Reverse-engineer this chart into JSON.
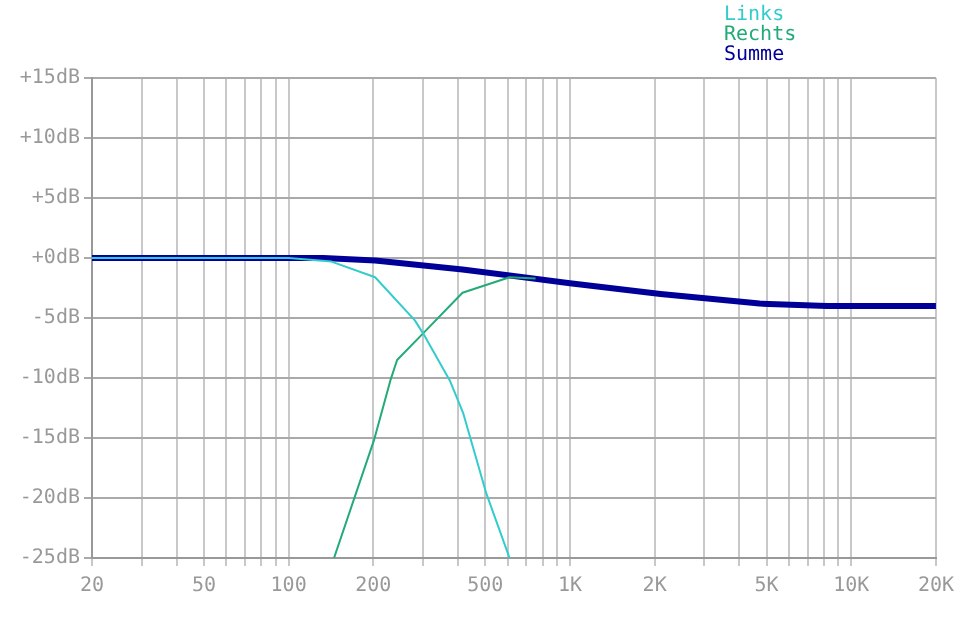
{
  "chart_data": {
    "type": "line",
    "log": "x",
    "grid": true,
    "legend": "top right",
    "marker": "none",
    "line_style": "solid",
    "xlim": [
      20,
      20000
    ],
    "xticks": [
      20,
      {
        "value": 30,
        "label": null
      },
      {
        "value": 40,
        "label": null
      },
      50,
      {
        "value": 60,
        "label": null
      },
      {
        "value": 70,
        "label": null
      },
      {
        "value": 80,
        "label": null
      },
      {
        "value": 90,
        "label": null
      },
      100,
      200,
      {
        "value": 300,
        "label": null
      },
      {
        "value": 400,
        "label": null
      },
      500,
      {
        "value": 600,
        "label": null
      },
      {
        "value": 700,
        "label": null
      },
      {
        "value": 800,
        "label": null
      },
      {
        "value": 900,
        "label": null
      },
      {
        "value": 1000,
        "label": "1K"
      },
      {
        "value": 2000,
        "label": "2K"
      },
      {
        "value": 3000,
        "label": null
      },
      {
        "value": 4000,
        "label": null
      },
      {
        "value": 5000,
        "label": "5K"
      },
      {
        "value": 6000,
        "label": null
      },
      {
        "value": 7000,
        "label": null
      },
      {
        "value": 8000,
        "label": null
      },
      {
        "value": 9000,
        "label": null
      },
      {
        "value": 10000,
        "label": "10K"
      },
      {
        "value": 20000,
        "label": "20K"
      }
    ],
    "ylim": [
      -25,
      15
    ],
    "yticks": [
      {
        "value": -25,
        "label": "-25dB"
      },
      {
        "value": -20,
        "label": "-20dB"
      },
      {
        "value": -15,
        "label": "-15dB"
      },
      {
        "value": -10,
        "label": "-10dB"
      },
      {
        "value": -5,
        "label": "-5dB"
      },
      {
        "value": 0,
        "label": "+0dB"
      },
      {
        "value": 5,
        "label": "+5dB"
      },
      {
        "value": 10,
        "label": "+10dB"
      },
      {
        "value": 15,
        "label": "+15dB"
      }
    ],
    "series": [
      {
        "name": "Links",
        "color": "#33cccc",
        "x": [
          20,
          100,
          142,
          203,
          281,
          301,
          374,
          417,
          504,
          610
        ],
        "values": [
          0,
          0,
          -0.3,
          -1.6,
          -5.2,
          -6.3,
          -10.2,
          -12.9,
          -19.6,
          -25
        ]
      },
      {
        "name": "Rechts",
        "color": "#22aa77",
        "x": [
          145,
          201,
          230,
          243,
          300,
          415,
          610,
          755
        ],
        "values": [
          -25,
          -15.2,
          -10.2,
          -8.5,
          -6.3,
          -2.9,
          -1.6,
          -1.7
        ]
      },
      {
        "name": "Summe",
        "color": "#000099",
        "x": [
          20,
          133,
          203,
          415,
          1000,
          2100,
          4720,
          8200,
          20000
        ],
        "values": [
          0,
          0,
          -0.2,
          -0.95,
          -2.1,
          -3,
          -3.8,
          -4,
          -4
        ]
      }
    ]
  }
}
